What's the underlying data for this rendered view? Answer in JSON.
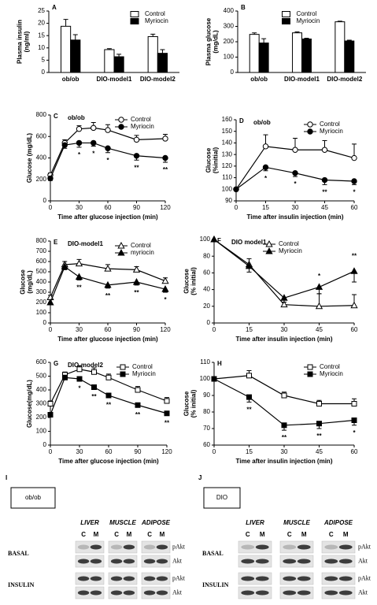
{
  "chart_data": [
    {
      "type": "bar",
      "label": "A",
      "ylabel": [
        "Plasma insulin",
        "(ng/ml)"
      ],
      "categories": [
        "ob/ob",
        "DIO-model1",
        "DIO-model2"
      ],
      "series": [
        {
          "name": "Control",
          "color": "#ffffff",
          "values": [
            18.8,
            9.3,
            14.6
          ],
          "errors": [
            2.8,
            0.4,
            1.0
          ]
        },
        {
          "name": "Myriocin",
          "color": "#000000",
          "values": [
            13.2,
            6.4,
            7.8
          ],
          "errors": [
            2.2,
            1.0,
            1.5
          ]
        }
      ],
      "ylim": [
        0,
        25
      ],
      "yticks": [
        0,
        5,
        10,
        15,
        20,
        25
      ],
      "legend": "upper right"
    },
    {
      "type": "bar",
      "label": "B",
      "ylabel": [
        "Plasma glucose",
        "(mg/dL)"
      ],
      "categories": [
        "ob/ob",
        "DIO-model1",
        "DIO-model2"
      ],
      "series": [
        {
          "name": "Control",
          "color": "#ffffff",
          "values": [
            248,
            258,
            330
          ],
          "errors": [
            10,
            6,
            4
          ]
        },
        {
          "name": "Myriocin",
          "color": "#000000",
          "values": [
            192,
            218,
            205
          ],
          "errors": [
            28,
            5,
            5
          ]
        }
      ],
      "ylim": [
        0,
        400
      ],
      "yticks": [
        0,
        100,
        200,
        300,
        400
      ],
      "legend": "upper center"
    },
    {
      "type": "line",
      "label": "C",
      "subtitle": "ob/ob",
      "ylabel": "Glucose (mg/dL)",
      "xlabel": "Time after glucose injection (min)",
      "x": [
        0,
        15,
        30,
        45,
        60,
        90,
        120
      ],
      "series": [
        {
          "name": "Control",
          "color": "#000000",
          "marker": "circle",
          "filled": false,
          "values": [
            240,
            540,
            670,
            680,
            660,
            570,
            580
          ],
          "errors": [
            20,
            30,
            30,
            50,
            50,
            40,
            40
          ]
        },
        {
          "name": "Myriocin",
          "color": "#000000",
          "marker": "circle",
          "filled": true,
          "values": [
            210,
            520,
            540,
            540,
            490,
            420,
            400
          ],
          "errors": [
            20,
            30,
            40,
            30,
            40,
            40,
            40
          ]
        }
      ],
      "xlim": [
        0,
        120
      ],
      "xticks": [
        0,
        30,
        60,
        90,
        120
      ],
      "ylim": [
        0,
        800
      ],
      "yticks": [
        0,
        200,
        400,
        600,
        800
      ],
      "legend": "upper right",
      "annotations": [
        {
          "x": 30,
          "text": "*"
        },
        {
          "x": 45,
          "text": "*"
        },
        {
          "x": 60,
          "text": "*"
        },
        {
          "x": 90,
          "text": "**"
        },
        {
          "x": 120,
          "text": "**"
        }
      ]
    },
    {
      "type": "line",
      "label": "D",
      "subtitle": "ob/ob",
      "ylabel": [
        "Glucose",
        "(%initial)"
      ],
      "xlabel": "Time after insulin injection (min)",
      "x": [
        0,
        15,
        30,
        45,
        60
      ],
      "series": [
        {
          "name": "Control",
          "color": "#000000",
          "marker": "circle",
          "filled": false,
          "values": [
            100,
            137,
            134,
            134,
            127
          ],
          "errors": [
            0,
            10,
            10,
            8,
            12
          ]
        },
        {
          "name": "Myriocin",
          "color": "#000000",
          "marker": "circle",
          "filled": true,
          "values": [
            100,
            119,
            114,
            108,
            107
          ],
          "errors": [
            0,
            3,
            3,
            4,
            3
          ]
        }
      ],
      "xlim": [
        0,
        60
      ],
      "xticks": [
        0,
        15,
        30,
        45,
        60
      ],
      "ylim": [
        90,
        160
      ],
      "yticks": [
        90,
        100,
        110,
        120,
        130,
        140,
        150,
        160
      ],
      "legend": "upper right",
      "annotations": [
        {
          "x": 15,
          "text": "*"
        },
        {
          "x": 30,
          "text": "*"
        },
        {
          "x": 45,
          "text": "**"
        },
        {
          "x": 60,
          "text": "*"
        }
      ]
    },
    {
      "type": "line",
      "label": "E",
      "subtitle": "DIO-model1",
      "ylabel": [
        "Glucose",
        "(mg/dL)"
      ],
      "xlabel": "Time after glucose injection (min)",
      "x": [
        0,
        15,
        30,
        60,
        90,
        120
      ],
      "series": [
        {
          "name": "Control",
          "color": "#000000",
          "marker": "triangle",
          "filled": false,
          "values": [
            250,
            570,
            580,
            530,
            520,
            410
          ],
          "errors": [
            20,
            30,
            40,
            40,
            30,
            30
          ]
        },
        {
          "name": "myriocin",
          "color": "#000000",
          "marker": "triangle",
          "filled": true,
          "values": [
            200,
            550,
            450,
            370,
            400,
            330
          ],
          "errors": [
            20,
            30,
            30,
            30,
            30,
            30
          ]
        }
      ],
      "xlim": [
        0,
        120
      ],
      "xticks": [
        0,
        30,
        60,
        90,
        120
      ],
      "ylim": [
        0,
        800
      ],
      "yticks": [
        0,
        100,
        200,
        300,
        400,
        500,
        600,
        700,
        800
      ],
      "legend": "upper right",
      "annotations": [
        {
          "x": 30,
          "text": "**"
        },
        {
          "x": 60,
          "text": "**"
        },
        {
          "x": 90,
          "text": "**"
        },
        {
          "x": 120,
          "text": "*"
        }
      ]
    },
    {
      "type": "line",
      "label": "F",
      "subtitle": "DIO model1",
      "ylabel": [
        "Glucose",
        "(% initial)"
      ],
      "xlabel": "Time after insulin injection (min)",
      "x": [
        0,
        15,
        30,
        45,
        60
      ],
      "series": [
        {
          "name": "Control",
          "color": "#000000",
          "marker": "triangle",
          "filled": false,
          "values": [
            100,
            70,
            22,
            20,
            21
          ],
          "errors": [
            0,
            7,
            8,
            15,
            13
          ]
        },
        {
          "name": "Myriocin",
          "color": "#000000",
          "marker": "triangle",
          "filled": true,
          "values": [
            100,
            68,
            30,
            43,
            62
          ],
          "errors": [
            0,
            7,
            5,
            8,
            13
          ]
        }
      ],
      "xlim": [
        0,
        60
      ],
      "xticks": [
        0,
        15,
        30,
        45,
        60
      ],
      "ylim": [
        0,
        100
      ],
      "yticks": [
        0,
        20,
        40,
        60,
        80,
        100
      ],
      "legend": "upper center",
      "annotations": [
        {
          "x": 45,
          "text": "*"
        },
        {
          "x": 60,
          "text": "**"
        }
      ]
    },
    {
      "type": "line",
      "label": "G",
      "subtitle": "DIO-model2",
      "ylabel": "Glucose(mg/dL)",
      "xlabel": "Time after glucose injection (min)",
      "x": [
        0,
        15,
        30,
        45,
        60,
        90,
        120
      ],
      "series": [
        {
          "name": "Control",
          "color": "#000000",
          "marker": "square",
          "filled": false,
          "values": [
            300,
            510,
            550,
            530,
            490,
            400,
            320
          ],
          "errors": [
            20,
            20,
            25,
            30,
            25,
            25,
            25
          ]
        },
        {
          "name": "Myriocin",
          "color": "#000000",
          "marker": "square",
          "filled": true,
          "values": [
            220,
            490,
            480,
            420,
            360,
            290,
            230
          ],
          "errors": [
            15,
            15,
            15,
            15,
            15,
            15,
            15
          ]
        }
      ],
      "xlim": [
        0,
        120
      ],
      "xticks": [
        0,
        30,
        60,
        90,
        120
      ],
      "ylim": [
        0,
        600
      ],
      "yticks": [
        0,
        100,
        200,
        300,
        400,
        500,
        600
      ],
      "legend": "upper right",
      "annotations": [
        {
          "x": 30,
          "text": "*"
        },
        {
          "x": 45,
          "text": "**"
        },
        {
          "x": 60,
          "text": "**"
        },
        {
          "x": 90,
          "text": "**"
        },
        {
          "x": 120,
          "text": "**"
        }
      ]
    },
    {
      "type": "line",
      "label": "H",
      "ylabel": [
        "Glucose",
        "(% initial)"
      ],
      "xlabel": "Time after insulin injection (min)",
      "x": [
        0,
        15,
        30,
        45,
        60
      ],
      "series": [
        {
          "name": "Control",
          "color": "#000000",
          "marker": "square",
          "filled": false,
          "values": [
            100,
            102,
            90,
            85,
            85
          ],
          "errors": [
            0,
            3,
            2,
            2,
            3
          ]
        },
        {
          "name": "Myriocin",
          "color": "#000000",
          "marker": "square",
          "filled": true,
          "values": [
            100,
            89,
            72,
            73,
            75
          ],
          "errors": [
            0,
            3,
            3,
            3,
            3
          ]
        }
      ],
      "xlim": [
        0,
        60
      ],
      "xticks": [
        0,
        15,
        30,
        45,
        60
      ],
      "ylim": [
        60,
        110
      ],
      "yticks": [
        60,
        70,
        80,
        90,
        100,
        110
      ],
      "legend": "upper right",
      "annotations": [
        {
          "x": 15,
          "text": "**"
        },
        {
          "x": 30,
          "text": "**"
        },
        {
          "x": 45,
          "text": "**"
        },
        {
          "x": 60,
          "text": "*"
        }
      ]
    }
  ],
  "blots": [
    {
      "panel": "I",
      "group": "ob/ob",
      "tissues": [
        "LIVER",
        "MUSCLE",
        "ADIPOSE"
      ],
      "lanes": [
        "C",
        "M"
      ],
      "conditions": [
        "BASAL",
        "INSULIN"
      ],
      "bands": [
        "pAkt",
        "Akt"
      ]
    },
    {
      "panel": "J",
      "group": "DIO",
      "tissues": [
        "LIVER",
        "MUSCLE",
        "ADIPOSE"
      ],
      "lanes": [
        "C",
        "M"
      ],
      "conditions": [
        "BASAL",
        "INSULIN"
      ],
      "bands": [
        "pAkt",
        "Akt"
      ]
    }
  ]
}
